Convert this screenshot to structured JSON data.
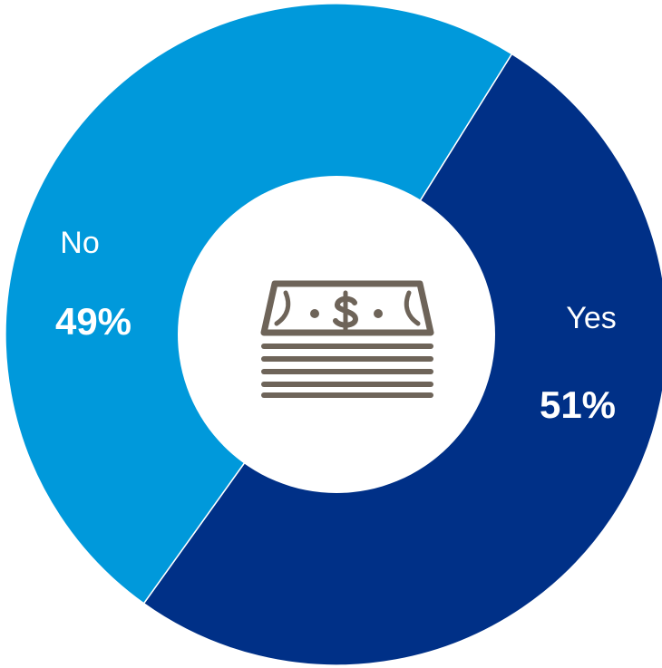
{
  "chart_data": {
    "type": "pie",
    "style": "donut",
    "categories": [
      "Yes",
      "No"
    ],
    "values": [
      51,
      49
    ],
    "value_labels": [
      "51%",
      "49%"
    ],
    "colors": [
      "#003087",
      "#0099DB"
    ],
    "start_angle_deg": 32,
    "direction": "clockwise",
    "legend": "none",
    "center_icon": "money-stack-icon",
    "center_icon_color": "#6E6459"
  }
}
